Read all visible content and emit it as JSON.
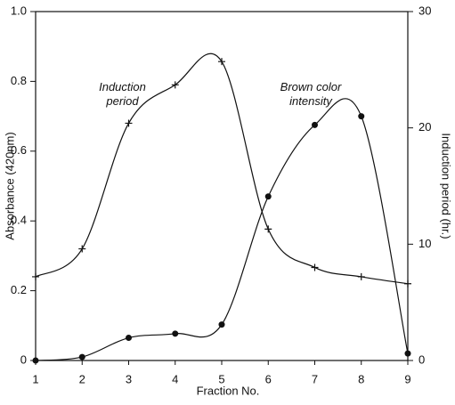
{
  "chart_data": {
    "type": "line",
    "x_label": "Fraction No.",
    "y_label": "Absorbance (420nm)",
    "y2_label": "Induction period (hr.)",
    "x": [
      1,
      2,
      3,
      4,
      5,
      6,
      7,
      8,
      9
    ],
    "xlim": [
      1,
      9
    ],
    "xticks": [
      1,
      2,
      3,
      4,
      5,
      6,
      7,
      8,
      9
    ],
    "ylim": [
      0,
      1
    ],
    "yticks": [
      0,
      0.2,
      0.4,
      0.6,
      0.8,
      {
        "value": 1,
        "label": "1.0"
      }
    ],
    "y2lim": [
      0,
      30
    ],
    "y2ticks": [
      0,
      10,
      20,
      30
    ],
    "series": [
      {
        "name": "Induction period",
        "color": "#111111",
        "marker": "plus",
        "axis": "y2",
        "values": [
          7.2,
          9.6,
          20.4,
          23.7,
          25.7,
          11.3,
          8.0,
          7.2,
          6.6
        ]
      },
      {
        "name": "Brown color intensity",
        "color": "#111111",
        "marker": "circle",
        "axis": "y",
        "values": [
          0,
          0.01,
          0.065,
          0.077,
          0.103,
          0.47,
          0.675,
          0.7,
          0.02
        ]
      }
    ]
  }
}
